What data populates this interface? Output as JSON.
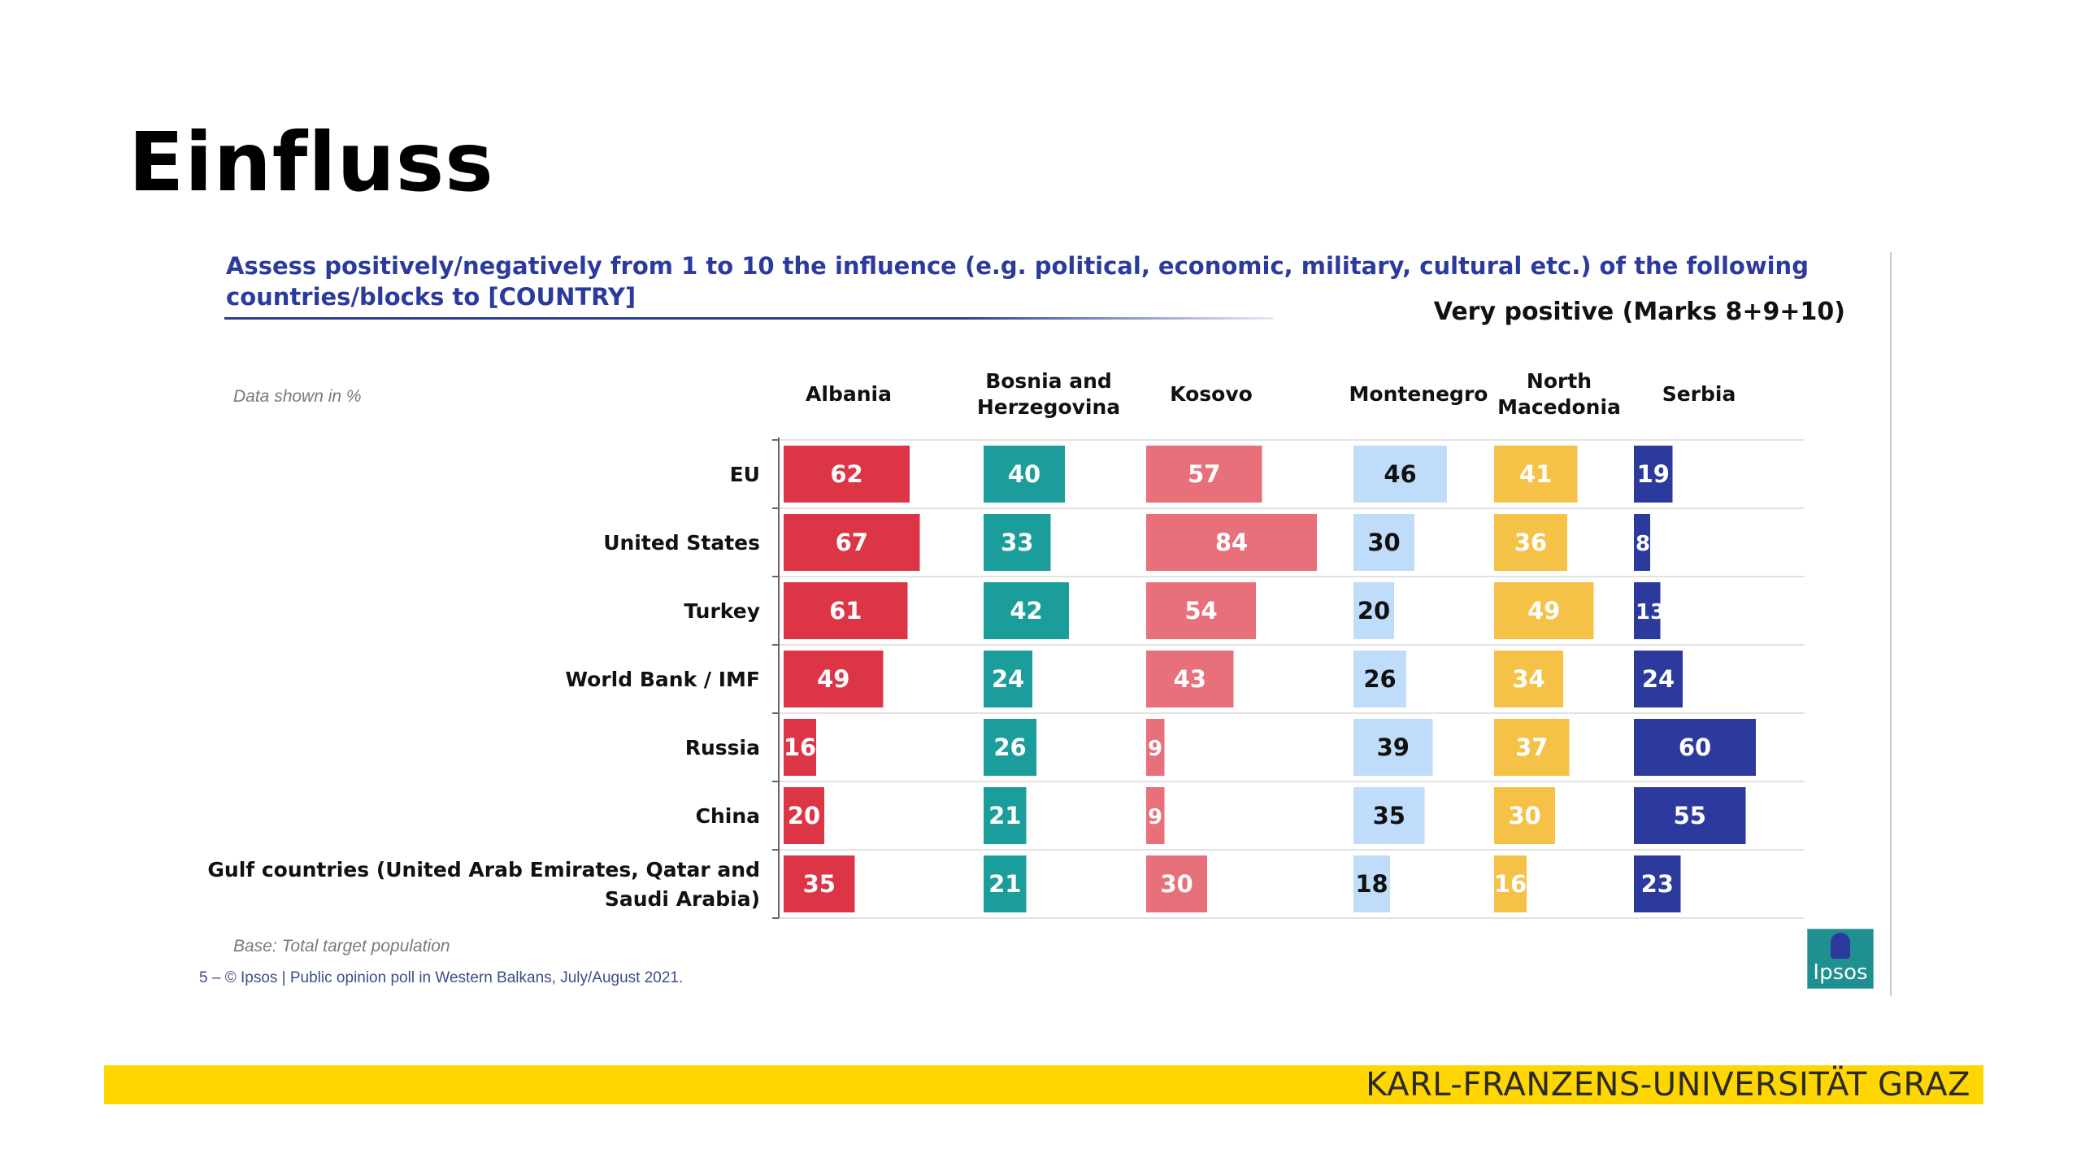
{
  "slide": {
    "title": "Einfluss",
    "university": "KARL-FRANZENS-UNIVERSITÄT GRAZ",
    "accent_color": "#ffd600"
  },
  "embedded": {
    "question": "Assess positively/negatively from 1 to 10 the influence (e.g. political, economic, military, cultural etc.) of the following countries/blocks to [COUNTRY]",
    "subtitle": "Very positive (Marks 8+9+10)",
    "note": "Data shown in %",
    "base": "Base: Total target population",
    "footer": "5 –  © Ipsos | Public opinion poll in Western Balkans, July/August 2021.",
    "logo_text": "Ipsos"
  },
  "chart_data": {
    "type": "bar",
    "orientation": "horizontal",
    "layout": "small-multiples",
    "categories": [
      "EU",
      "United States",
      "Turkey",
      "World Bank / IMF",
      "Russia",
      "China",
      "Gulf countries (United Arab Emirates, Qatar and Saudi Arabia)"
    ],
    "series": [
      {
        "name": "Albania",
        "color": "#dc3545",
        "label_color": "#ffffff",
        "values": [
          62,
          67,
          61,
          49,
          16,
          20,
          35
        ]
      },
      {
        "name": "Bosnia and Herzegovina",
        "color": "#1b9e9b",
        "label_color": "#ffffff",
        "values": [
          40,
          33,
          42,
          24,
          26,
          21,
          21
        ]
      },
      {
        "name": "Kosovo",
        "color": "#e8707a",
        "label_color": "#ffffff",
        "values": [
          57,
          84,
          54,
          43,
          9,
          9,
          30
        ]
      },
      {
        "name": "Montenegro",
        "color": "#bfdcfa",
        "label_color": "#111111",
        "values": [
          46,
          30,
          20,
          26,
          39,
          35,
          18
        ]
      },
      {
        "name": "North Macedonia",
        "color": "#f5c247",
        "label_color": "#ffffff",
        "values": [
          41,
          36,
          49,
          34,
          37,
          30,
          16
        ]
      },
      {
        "name": "Serbia",
        "color": "#2b3a9c",
        "label_color": "#ffffff",
        "values": [
          19,
          8,
          13,
          24,
          60,
          55,
          23
        ]
      }
    ],
    "unit": "%"
  }
}
